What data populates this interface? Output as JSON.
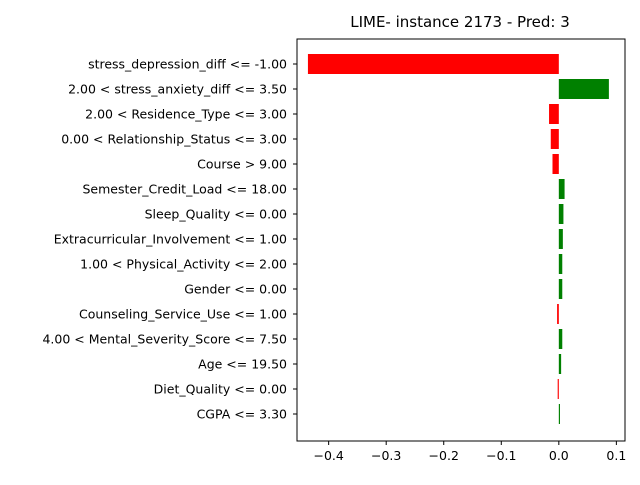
{
  "chart_data": {
    "type": "bar",
    "orientation": "horizontal",
    "title": "LIME- instance 2173 - Pred: 3",
    "xlabel": "",
    "ylabel": "",
    "xlim": [
      -0.455,
      0.115
    ],
    "xticks": [
      -0.4,
      -0.3,
      -0.2,
      -0.1,
      0.0,
      0.1
    ],
    "xtick_labels": [
      "−0.4",
      "−0.3",
      "−0.2",
      "−0.1",
      "0.0",
      "0.1"
    ],
    "grid": false,
    "positive_color": "#008000",
    "negative_color": "#ff0000",
    "categories": [
      "stress_depression_diff <= -1.00",
      "2.00 < stress_anxiety_diff <= 3.50",
      "2.00 < Residence_Type <= 3.00",
      "0.00 < Relationship_Status <= 3.00",
      "Course > 9.00",
      "Semester_Credit_Load <= 18.00",
      "Sleep_Quality <= 0.00",
      "Extracurricular_Involvement <= 1.00",
      "1.00 < Physical_Activity <= 2.00",
      "Gender <= 0.00",
      "Counseling_Service_Use <= 1.00",
      "4.00 < Mental_Severity_Score <= 7.50",
      "Age <= 19.50",
      "Diet_Quality <= 0.00",
      "CGPA <= 3.30"
    ],
    "values": [
      -0.436,
      0.087,
      -0.017,
      -0.014,
      -0.011,
      0.01,
      0.008,
      0.007,
      0.006,
      0.006,
      -0.003,
      0.006,
      0.004,
      -0.002,
      0.002
    ]
  }
}
